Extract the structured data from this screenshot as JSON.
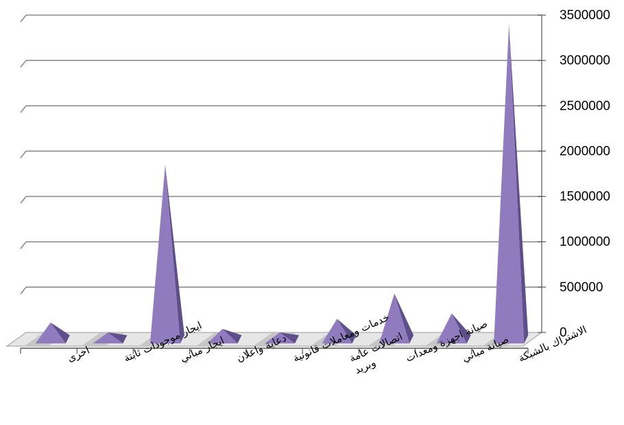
{
  "chart_data": {
    "type": "bar",
    "style": "3d-pyramid",
    "categories": [
      [
        "اخرى"
      ],
      [
        "ايجار موجودات ثابتة"
      ],
      [
        "ايجار مباني"
      ],
      [
        "دعاية واعلان"
      ],
      [
        "خدمات ومعاملات قانونية"
      ],
      [
        "اتصالات عامة وبريد"
      ],
      [
        "صيانة اجهزة ومعدات"
      ],
      [
        "صيانة مباني"
      ],
      [
        "الاشتراك بالشبكة"
      ]
    ],
    "category_lines": [
      [
        "اخرى"
      ],
      [
        "ايجار موجودات ثابتة"
      ],
      [
        "ايجار مباني"
      ],
      [
        "دعاية واعلان"
      ],
      [
        "خدمات ومعاملات قانونية"
      ],
      [
        "اتصالات عامة",
        "وبريد"
      ],
      [
        "صيانة اجهزة ومعدات"
      ],
      [
        "صيانة مباني"
      ],
      [
        "الاشتراك بالشبكة"
      ]
    ],
    "values": [
      110000,
      0,
      1850000,
      40000,
      0,
      150000,
      430000,
      210000,
      3400000
    ],
    "ylim": [
      0,
      3500000
    ],
    "yticks": [
      "0",
      "500000",
      "1000000",
      "1500000",
      "2000000",
      "2500000",
      "3000000",
      "3500000"
    ],
    "ytick_values": [
      0,
      500000,
      1000000,
      1500000,
      2000000,
      2500000,
      3000000,
      3500000
    ],
    "grid": true,
    "y_axis_side": "right",
    "colors": {
      "front": "#8F7BBE",
      "side": "#5E4E8A",
      "grid": "#8C8C8C",
      "floor_stripe": "#BFBFBF"
    }
  }
}
